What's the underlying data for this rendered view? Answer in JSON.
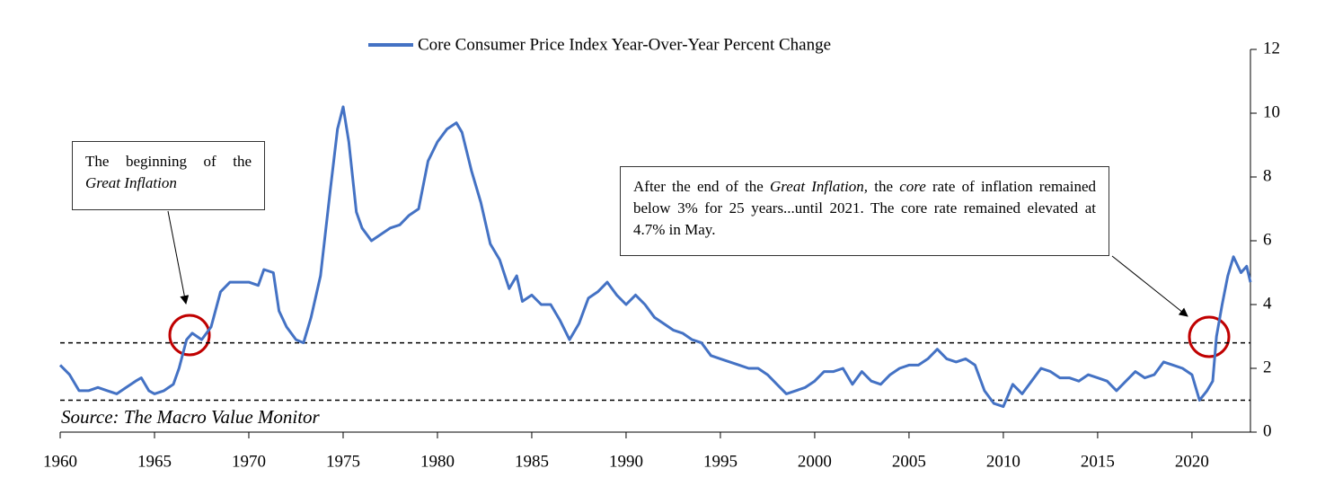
{
  "chart_data": {
    "type": "line",
    "source": "Source: The Macro Value Monitor",
    "x": [
      1960.0,
      1960.5,
      1961,
      1961.5,
      1962,
      1962.5,
      1963,
      1963.5,
      1964,
      1964.3,
      1964.7,
      1965,
      1965.5,
      1966,
      1966.3,
      1966.7,
      1967,
      1967.5,
      1968,
      1968.5,
      1969,
      1969.5,
      1970,
      1970.5,
      1970.8,
      1971.3,
      1971.6,
      1972,
      1972.5,
      1972.9,
      1973.3,
      1973.8,
      1974.3,
      1974.7,
      1975,
      1975.3,
      1975.7,
      1976,
      1976.5,
      1977,
      1977.5,
      1978,
      1978.5,
      1979,
      1979.5,
      1980,
      1980.5,
      1981,
      1981.3,
      1981.8,
      1982.3,
      1982.8,
      1983.3,
      1983.8,
      1984.2,
      1984.5,
      1985,
      1985.5,
      1986,
      1986.5,
      1987,
      1987.5,
      1988,
      1988.5,
      1989,
      1989.5,
      1990,
      1990.5,
      1991,
      1991.5,
      1992,
      1992.5,
      1993,
      1993.5,
      1994,
      1994.5,
      1995,
      1995.5,
      1996,
      1996.5,
      1997,
      1997.5,
      1998,
      1998.5,
      1999,
      1999.5,
      2000,
      2000.5,
      2001,
      2001.5,
      2002,
      2002.5,
      2003,
      2003.5,
      2004,
      2004.5,
      2005,
      2005.5,
      2006,
      2006.5,
      2007,
      2007.5,
      2008,
      2008.5,
      2009,
      2009.5,
      2010,
      2010.5,
      2011,
      2011.5,
      2012,
      2012.5,
      2013,
      2013.5,
      2014,
      2014.5,
      2015,
      2015.5,
      2016,
      2016.5,
      2017,
      2017.5,
      2018,
      2018.5,
      2019,
      2019.5,
      2020,
      2020.4,
      2020.8,
      2021.1,
      2021.3,
      2021.6,
      2021.9,
      2022.2,
      2022.6,
      2022.9,
      2023.1
    ],
    "series": [
      {
        "name": "Core Consumer Price Index Year-Over-Year Percent Change",
        "color": "#4472c4",
        "values": [
          2.1,
          1.8,
          1.3,
          1.3,
          1.4,
          1.3,
          1.2,
          1.4,
          1.6,
          1.7,
          1.3,
          1.2,
          1.3,
          1.5,
          2.0,
          2.9,
          3.1,
          2.9,
          3.3,
          4.4,
          4.7,
          4.7,
          4.7,
          4.6,
          5.1,
          5.0,
          3.8,
          3.3,
          2.9,
          2.8,
          3.6,
          4.9,
          7.5,
          9.5,
          10.2,
          9.1,
          6.9,
          6.4,
          6.0,
          6.2,
          6.4,
          6.5,
          6.8,
          7.0,
          8.5,
          9.1,
          9.5,
          9.7,
          9.4,
          8.2,
          7.2,
          5.9,
          5.4,
          4.5,
          4.9,
          4.1,
          4.3,
          4.0,
          4.0,
          3.5,
          2.9,
          3.4,
          4.2,
          4.4,
          4.7,
          4.3,
          4.0,
          4.3,
          4.0,
          3.6,
          3.4,
          3.2,
          3.1,
          2.9,
          2.8,
          2.4,
          2.3,
          2.2,
          2.1,
          2.0,
          2.0,
          1.8,
          1.5,
          1.2,
          1.3,
          1.4,
          1.6,
          1.9,
          1.9,
          2.0,
          1.5,
          1.9,
          1.6,
          1.5,
          1.8,
          2.0,
          2.1,
          2.1,
          2.3,
          2.6,
          2.3,
          2.2,
          2.3,
          2.1,
          1.3,
          0.9,
          0.8,
          1.5,
          1.2,
          1.6,
          2.0,
          1.9,
          1.7,
          1.7,
          1.6,
          1.8,
          1.7,
          1.6,
          1.3,
          1.6,
          1.9,
          1.7,
          1.8,
          2.2,
          2.1,
          2.0,
          1.8,
          1.0,
          1.3,
          1.6,
          3.0,
          4.0,
          4.9,
          5.5,
          5.0,
          5.2,
          4.7
        ]
      }
    ],
    "xlim": [
      1960,
      2023.1
    ],
    "xticks": [
      1960,
      1965,
      1970,
      1975,
      1980,
      1985,
      1990,
      1995,
      2000,
      2005,
      2010,
      2015,
      2020
    ],
    "ylim": [
      0,
      12
    ],
    "yticks": [
      0,
      2,
      4,
      6,
      8,
      10,
      12
    ],
    "y_axis_side": "right",
    "reference_lines": [
      2.8,
      1.0
    ],
    "annotations": [
      [
        {
          "text": "The beginning of the "
        },
        {
          "text": "Great Inflation",
          "italic": true
        }
      ],
      [
        {
          "text": "After the end of the "
        },
        {
          "text": "Great Inflation,",
          "italic": true
        },
        {
          "text": " the "
        },
        {
          "text": "core",
          "italic": true
        },
        {
          "text": " rate of inflation remained below 3% for 25 years...until 2021. The core rate remained elevated at 4.7% in May."
        }
      ]
    ]
  }
}
